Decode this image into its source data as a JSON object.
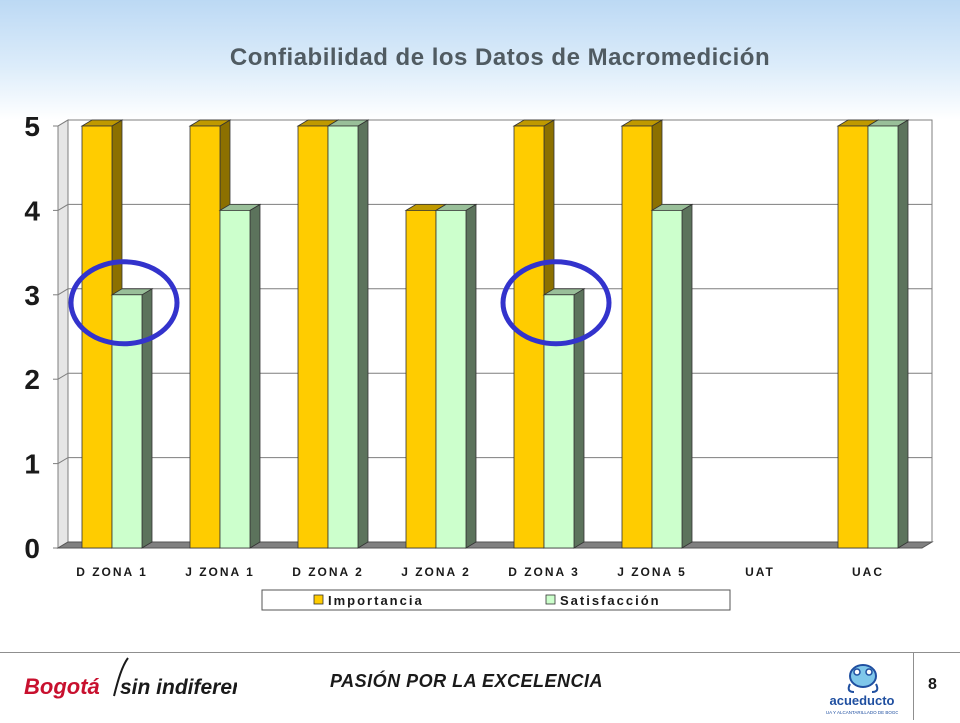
{
  "title": "Confiabilidad de los Datos de Macromedición",
  "footer": {
    "slogan": "PASIÓN POR LA EXCELENCIA",
    "page_number": "8",
    "left_logo_text": "Bogotá sin indiferencia",
    "right_logo_text": "acueducto",
    "right_logo_subtext": "AGUA Y ALCANTARILLADO DE BOGOTÁ"
  },
  "colors": {
    "importancia": "#ffcc00",
    "satisfaccion": "#ccffcc",
    "highlight_circle": "#3333cc",
    "floor": "#808080"
  },
  "chart_data": {
    "type": "bar",
    "title": "Confiabilidad de los Datos de Macromedición",
    "categories": [
      "D ZONA 1",
      "J ZONA 1",
      "D ZONA 2",
      "J ZONA 2",
      "D ZONA 3",
      "J ZONA 5",
      "UAT",
      "UAC"
    ],
    "series": [
      {
        "name": "Importancia",
        "values": [
          5,
          5,
          5,
          4,
          5,
          5,
          null,
          5
        ]
      },
      {
        "name": "Satisfacción",
        "values": [
          3,
          4,
          5,
          4,
          3,
          4,
          null,
          5
        ]
      }
    ],
    "ylim": [
      0,
      5
    ],
    "yticks": [
      "0",
      "1",
      "2",
      "3",
      "4",
      "5"
    ],
    "grid": true,
    "legend": "bottom",
    "highlighted_bars": [
      "D ZONA 1 Satisfacción",
      "D ZONA 3 Satisfacción"
    ]
  }
}
